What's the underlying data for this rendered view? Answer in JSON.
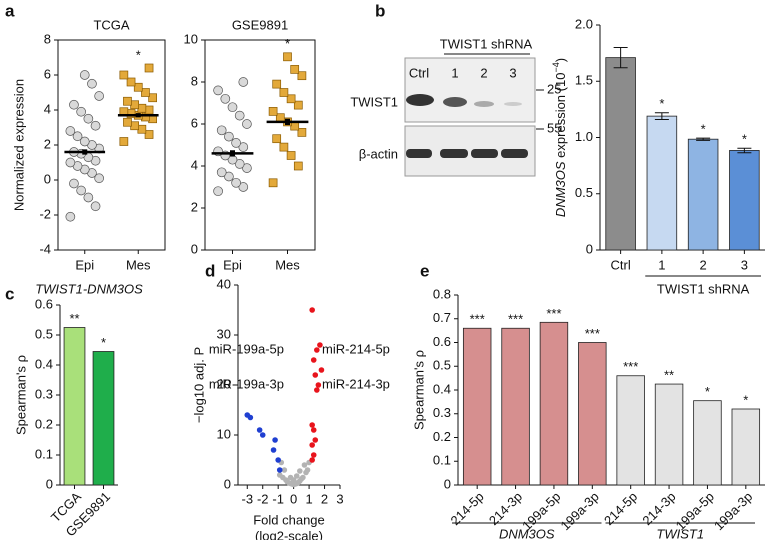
{
  "chart_data": [
    {
      "type": "strip",
      "panel": "a",
      "title": "TCGA",
      "y_label": "Normalized expression",
      "categories": [
        "Epi",
        "Mes"
      ],
      "groups": [
        {
          "marker": "circle",
          "color": "#d9d9d9",
          "mean": 1.6,
          "error": 0.15,
          "values": [
            -2.1,
            -1.5,
            -1,
            -0.6,
            -0.2,
            0.1,
            0.4,
            0.6,
            0.8,
            1,
            1.1,
            1.3,
            1.5,
            1.6,
            1.8,
            2,
            2.2,
            2.5,
            2.8,
            3.1,
            3.5,
            3.9,
            4.3,
            4.8,
            5.5,
            6
          ]
        },
        {
          "marker": "square",
          "color": "#e3a93a",
          "mean": 3.7,
          "error": 0.12,
          "values": [
            2.2,
            2.6,
            2.9,
            3.1,
            3.3,
            3.5,
            3.6,
            3.7,
            3.8,
            3.9,
            4,
            4.1,
            4.3,
            4.5,
            4.7,
            5,
            5.3,
            5.6,
            6,
            6.4
          ]
        }
      ],
      "annotations": [
        null,
        "*"
      ],
      "ylim": [
        -4,
        8
      ],
      "yticks": [
        -4,
        -2,
        0,
        2,
        4,
        6,
        8
      ]
    },
    {
      "type": "strip",
      "title": "GSE9891",
      "categories": [
        "Epi",
        "Mes"
      ],
      "groups": [
        {
          "marker": "circle",
          "color": "#d9d9d9",
          "mean": 4.6,
          "error": 0.15,
          "values": [
            2.8,
            3,
            3.2,
            3.5,
            3.7,
            3.9,
            4.1,
            4.3,
            4.5,
            4.7,
            4.9,
            5.1,
            5.4,
            5.7,
            6,
            6.4,
            6.8,
            7.2,
            7.6,
            8
          ]
        },
        {
          "marker": "square",
          "color": "#e3a93a",
          "mean": 6.1,
          "error": 0.15,
          "values": [
            3.2,
            4,
            4.5,
            4.9,
            5.3,
            5.6,
            5.9,
            6.1,
            6.3,
            6.6,
            6.9,
            7.2,
            7.5,
            7.9,
            8.3,
            8.6,
            9.2
          ]
        }
      ],
      "annotations": [
        null,
        "*"
      ],
      "ylim": [
        0,
        10
      ],
      "yticks": [
        0,
        2,
        4,
        6,
        8,
        10
      ]
    },
    {
      "type": "bar",
      "y_label": {
        "gene": "DNM3OS",
        "text": " expression (10",
        "exponent": "−4",
        "close": ")"
      },
      "categories": [
        "Ctrl",
        "1",
        "2",
        "3"
      ],
      "values": [
        1.71,
        1.19,
        0.985,
        0.885
      ],
      "errors": [
        0.09,
        0.03,
        0.01,
        0.02
      ],
      "colors": [
        "#8c8c8c",
        "#c6d9f1",
        "#8eb4e3",
        "#5b8fd6"
      ],
      "annotations": [
        null,
        "*",
        "*",
        "*"
      ],
      "group_label": "TWIST1 shRNA",
      "ylim": [
        0,
        2
      ],
      "yticks": [
        0,
        0.5,
        {
          "value": 1,
          "label": "1.0"
        },
        1.5,
        {
          "value": 2,
          "label": "2.0"
        }
      ]
    },
    {
      "type": "bar",
      "panel": "c",
      "title": "TWIST1-DNM3OS",
      "y_label": "Spearman's ρ",
      "categories": [
        "TCGA",
        "GSE9891"
      ],
      "values": [
        0.525,
        0.445
      ],
      "colors": [
        "#a9e07a",
        "#1fae4b"
      ],
      "annotations": [
        "**",
        "*"
      ],
      "ylim": [
        0,
        0.6
      ],
      "yticks": [
        0,
        0.1,
        0.2,
        0.3,
        0.4,
        0.5,
        0.6
      ]
    },
    {
      "type": "scatter",
      "panel": "d",
      "y_label": "−log10 adj. P",
      "x_label": [
        "Fold change",
        "(log2-scale)"
      ],
      "series": [
        {
          "color": "#b3b3b3",
          "x": [
            -0.9,
            -0.7,
            -0.5,
            -0.4,
            -0.3,
            -0.2,
            -0.1,
            0,
            0.1,
            0.2,
            0.3,
            0.4,
            0.5,
            0.6,
            0.8,
            0.9,
            -0.6,
            -0.2,
            0.2,
            0.7,
            -0.8,
            0.4,
            0,
            1
          ],
          "y": [
            2,
            1.5,
            1,
            0.6,
            0.4,
            0.3,
            0.2,
            0.1,
            0.2,
            0.3,
            0.5,
            0.8,
            1.2,
            1.5,
            2.5,
            3,
            3,
            1.5,
            1.8,
            4,
            4.5,
            2.8,
            1,
            4.5
          ]
        },
        {
          "color": "#e8141c",
          "x": [
            1.2,
            1.5,
            1.3,
            1.7,
            1.8,
            1.4,
            1.6,
            1.5,
            1.2,
            1.3,
            1.4,
            1.2,
            1.3,
            1.2
          ],
          "y": [
            35,
            27,
            25,
            28,
            23,
            22,
            20,
            19,
            12,
            11,
            9,
            8,
            6,
            5
          ]
        },
        {
          "color": "#1f3fd1",
          "x": [
            -3,
            -2.8,
            -2.2,
            -2,
            -1.2,
            -1.3,
            -1,
            -0.9
          ],
          "y": [
            14,
            13.5,
            11,
            10,
            9,
            7,
            5,
            3
          ]
        }
      ],
      "annotations": [
        "miR-199a-5p",
        "miR-214-5p",
        "miR-199a-3p",
        "miR-214-3p"
      ],
      "xlim": [
        -3.6,
        3
      ],
      "xticks": [
        -3,
        -2,
        -1,
        0,
        1,
        2,
        3
      ],
      "ylim": [
        0,
        40
      ],
      "yticks": [
        0,
        10,
        20,
        30,
        40
      ]
    },
    {
      "type": "bar",
      "panel": "e",
      "y_label": "Spearman's ρ",
      "categories": [
        "214-5p",
        "214-3p",
        "199a-5p",
        "199a-3p",
        "214-5p",
        "214-3p",
        "199a-5p",
        "199a-3p"
      ],
      "values": [
        0.66,
        0.66,
        0.685,
        0.6,
        0.46,
        0.425,
        0.355,
        0.32
      ],
      "colors": [
        "#d68f8f",
        "#d68f8f",
        "#d68f8f",
        "#d68f8f",
        "#e3e3e3",
        "#e3e3e3",
        "#e3e3e3",
        "#e3e3e3"
      ],
      "annotations": [
        "***",
        "***",
        "***",
        "***",
        "***",
        "**",
        "*",
        "*"
      ],
      "groups": [
        "DNM3OS",
        "TWIST1"
      ],
      "ylim": [
        0,
        0.8
      ],
      "yticks": [
        0,
        0.1,
        0.2,
        0.3,
        0.4,
        0.5,
        0.6,
        0.7,
        0.8
      ]
    }
  ],
  "blot": {
    "panel": "b",
    "header": "TWIST1 shRNA",
    "lanes": [
      "Ctrl",
      "1",
      "2",
      "3"
    ],
    "rows": [
      "TWIST1",
      "β-actin"
    ],
    "markers": [
      "25",
      "55"
    ]
  }
}
